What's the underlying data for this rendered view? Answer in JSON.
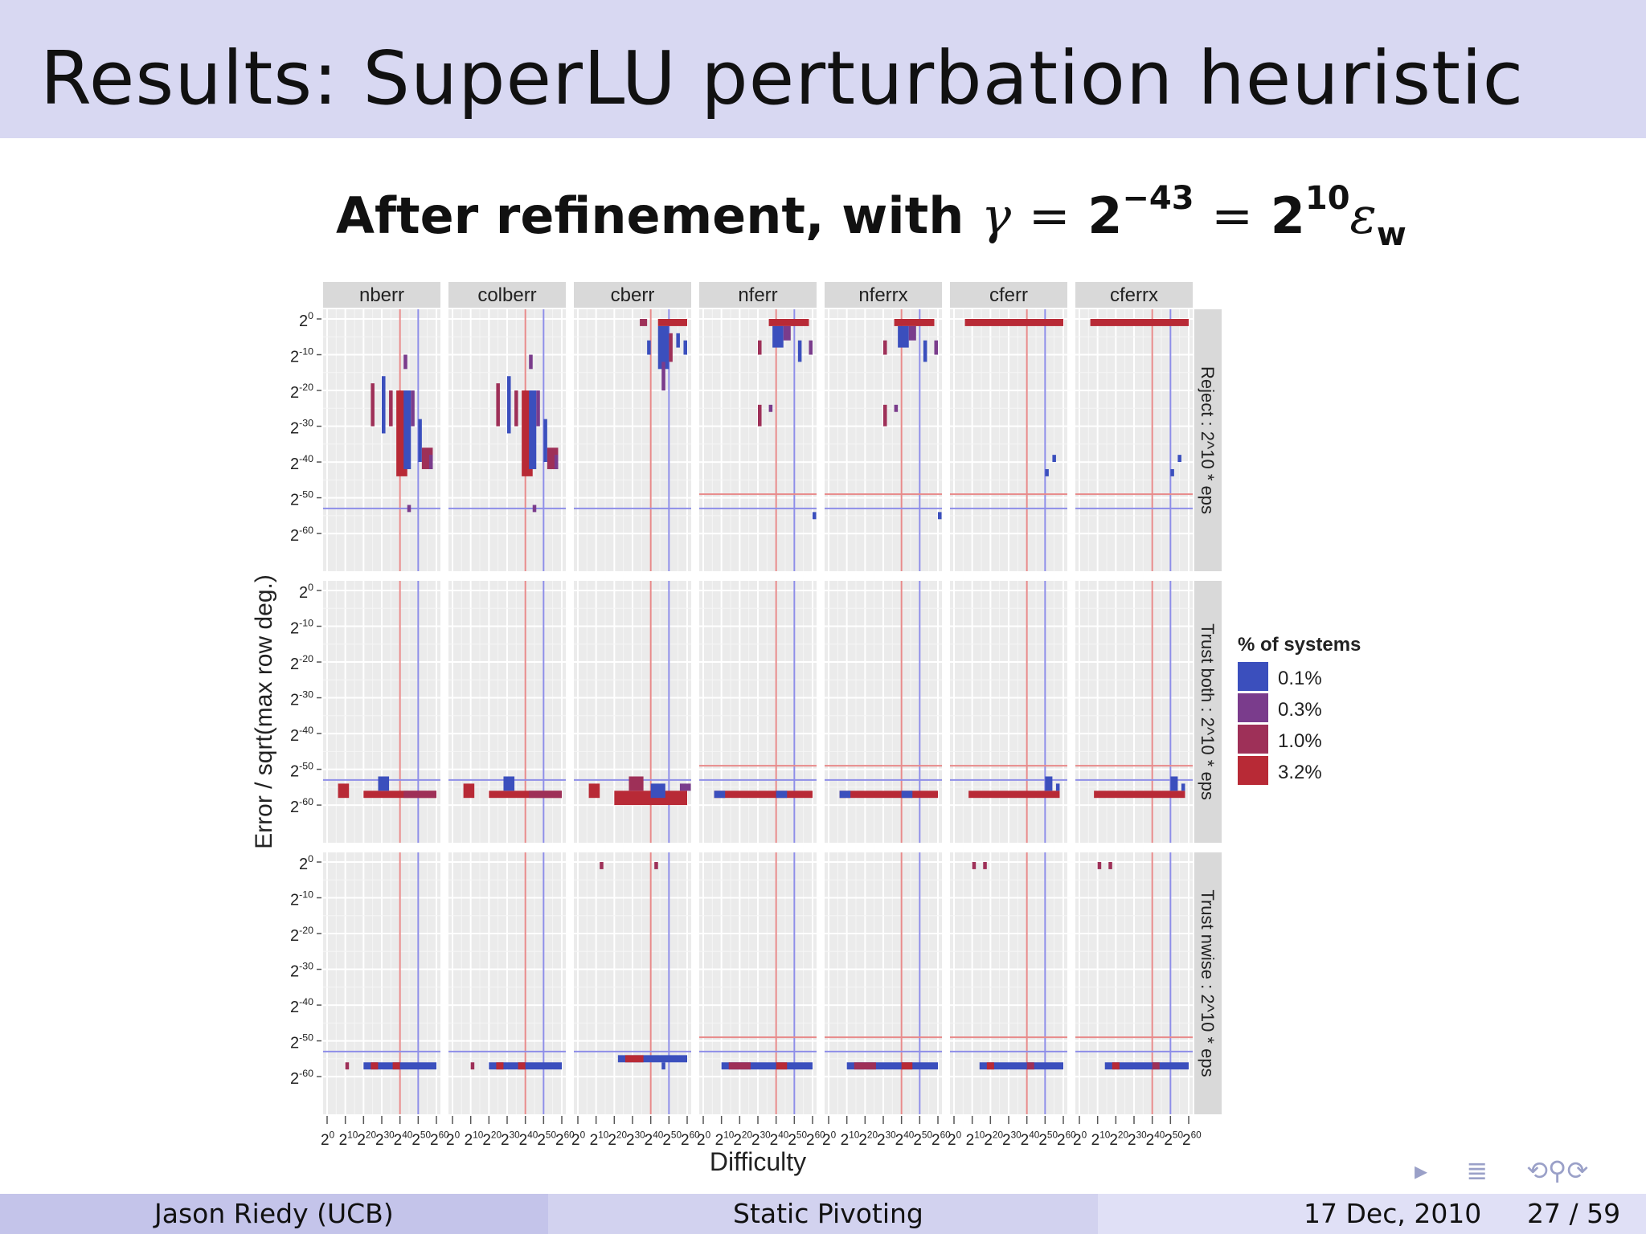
{
  "slide": {
    "title": "Results: SuperLU perturbation heuristic",
    "subtitle_text": "After refinement, with",
    "subtitle_gamma": "γ",
    "subtitle_eq": "=",
    "subtitle_base": "2",
    "subtitle_exp1": "−43",
    "subtitle_exp2": "10",
    "subtitle_eps": "ε",
    "subtitle_eps_sub": "w"
  },
  "nav_icons": [
    "nav-arrow-icon",
    "nav-menu-icon",
    "nav-search-icons"
  ],
  "nav_symbols": {
    "arrow": "▸",
    "menu": "≣",
    "search": "⟲⚲⟳"
  },
  "footer": {
    "author": "Jason Riedy  (UCB)",
    "talk_title": "Static Pivoting",
    "date": "17 Dec, 2010",
    "page": "27 / 59"
  },
  "colors": {
    "title_bar": "#d8d8f2",
    "panel_bg": "#ebebeb",
    "strip_bg": "#d9d9d9",
    "ref_red": "#e88a8a",
    "ref_blue": "#8e8ee8"
  },
  "chart_data": {
    "type": "heatmap",
    "facet_columns": [
      "nberr",
      "colberr",
      "cberr",
      "nferr",
      "nferrx",
      "cferr",
      "cferrx"
    ],
    "facet_rows": [
      "Reject : 2^10 * eps",
      "Trust both : 2^10 * eps",
      "Trust nwise : 2^10 * eps"
    ],
    "xlabel": "Difficulty",
    "ylabel": "Error / sqrt(max row deg.)",
    "x_ticks": [
      "2^0",
      "2^10",
      "2^20",
      "2^30",
      "2^40",
      "2^50",
      "2^60"
    ],
    "y_ticks": [
      "2^0",
      "2^-10",
      "2^-20",
      "2^-30",
      "2^-40",
      "2^-50",
      "2^-60"
    ],
    "x_range_log2": [
      0,
      60
    ],
    "y_range_log2": [
      -62,
      0
    ],
    "grid": true,
    "legend_position": "right",
    "legend": {
      "title": "% of systems",
      "entries": [
        {
          "label": "0.1%",
          "color": "#3b4fbd"
        },
        {
          "label": "0.3%",
          "color": "#7a3c8c"
        },
        {
          "label": "1.0%",
          "color": "#9e3058"
        },
        {
          "label": "3.2%",
          "color": "#b82a36"
        }
      ]
    },
    "reference_lines": {
      "vertical_red_x": 40,
      "vertical_blue_x": 50,
      "horizontal_blue_y": -53,
      "horizontal_red_y": -49
    },
    "cells": [
      {
        "col": 0,
        "row": 0,
        "x": 42,
        "y": -10,
        "h": 4,
        "w": 2,
        "l": 1
      },
      {
        "col": 0,
        "row": 0,
        "x": 24,
        "y": -18,
        "h": 12,
        "w": 2,
        "l": 2
      },
      {
        "col": 0,
        "row": 0,
        "x": 30,
        "y": -16,
        "h": 16,
        "w": 2,
        "l": 0
      },
      {
        "col": 0,
        "row": 0,
        "x": 34,
        "y": -20,
        "h": 10,
        "w": 2,
        "l": 2
      },
      {
        "col": 0,
        "row": 0,
        "x": 38,
        "y": -20,
        "h": 24,
        "w": 6,
        "l": 3
      },
      {
        "col": 0,
        "row": 0,
        "x": 42,
        "y": -20,
        "h": 22,
        "w": 4,
        "l": 0
      },
      {
        "col": 0,
        "row": 0,
        "x": 46,
        "y": -20,
        "h": 10,
        "w": 2,
        "l": 1
      },
      {
        "col": 0,
        "row": 0,
        "x": 50,
        "y": -28,
        "h": 12,
        "w": 2,
        "l": 0
      },
      {
        "col": 0,
        "row": 0,
        "x": 52,
        "y": -36,
        "h": 6,
        "w": 6,
        "l": 2
      },
      {
        "col": 0,
        "row": 0,
        "x": 56,
        "y": -38,
        "h": 4,
        "w": 2,
        "l": 1
      },
      {
        "col": 0,
        "row": 0,
        "x": 44,
        "y": -52,
        "h": 2,
        "w": 2,
        "l": 1
      },
      {
        "col": 1,
        "row": 0,
        "x": 42,
        "y": -10,
        "h": 4,
        "w": 2,
        "l": 1
      },
      {
        "col": 1,
        "row": 0,
        "x": 24,
        "y": -18,
        "h": 12,
        "w": 2,
        "l": 2
      },
      {
        "col": 1,
        "row": 0,
        "x": 30,
        "y": -16,
        "h": 16,
        "w": 2,
        "l": 0
      },
      {
        "col": 1,
        "row": 0,
        "x": 34,
        "y": -20,
        "h": 10,
        "w": 2,
        "l": 2
      },
      {
        "col": 1,
        "row": 0,
        "x": 38,
        "y": -20,
        "h": 24,
        "w": 6,
        "l": 3
      },
      {
        "col": 1,
        "row": 0,
        "x": 42,
        "y": -20,
        "h": 22,
        "w": 4,
        "l": 0
      },
      {
        "col": 1,
        "row": 0,
        "x": 46,
        "y": -20,
        "h": 10,
        "w": 2,
        "l": 1
      },
      {
        "col": 1,
        "row": 0,
        "x": 50,
        "y": -28,
        "h": 12,
        "w": 2,
        "l": 0
      },
      {
        "col": 1,
        "row": 0,
        "x": 52,
        "y": -36,
        "h": 6,
        "w": 6,
        "l": 2
      },
      {
        "col": 1,
        "row": 0,
        "x": 56,
        "y": -38,
        "h": 4,
        "w": 2,
        "l": 1
      },
      {
        "col": 1,
        "row": 0,
        "x": 44,
        "y": -52,
        "h": 2,
        "w": 2,
        "l": 1
      },
      {
        "col": 2,
        "row": 0,
        "x": 34,
        "y": 0,
        "h": 2,
        "w": 4,
        "l": 2
      },
      {
        "col": 2,
        "row": 0,
        "x": 44,
        "y": 0,
        "h": 2,
        "w": 16,
        "l": 3
      },
      {
        "col": 2,
        "row": 0,
        "x": 44,
        "y": -2,
        "h": 12,
        "w": 6,
        "l": 0
      },
      {
        "col": 2,
        "row": 0,
        "x": 50,
        "y": -4,
        "h": 8,
        "w": 2,
        "l": 2
      },
      {
        "col": 2,
        "row": 0,
        "x": 54,
        "y": -4,
        "h": 4,
        "w": 2,
        "l": 0
      },
      {
        "col": 2,
        "row": 0,
        "x": 46,
        "y": -12,
        "h": 8,
        "w": 2,
        "l": 1
      },
      {
        "col": 2,
        "row": 0,
        "x": 38,
        "y": -6,
        "h": 4,
        "w": 2,
        "l": 0
      },
      {
        "col": 2,
        "row": 0,
        "x": 58,
        "y": -6,
        "h": 4,
        "w": 2,
        "l": 0
      },
      {
        "col": 3,
        "row": 0,
        "x": 36,
        "y": 0,
        "h": 2,
        "w": 22,
        "l": 3
      },
      {
        "col": 3,
        "row": 0,
        "x": 38,
        "y": -2,
        "h": 6,
        "w": 6,
        "l": 0
      },
      {
        "col": 3,
        "row": 0,
        "x": 44,
        "y": -2,
        "h": 4,
        "w": 4,
        "l": 1
      },
      {
        "col": 3,
        "row": 0,
        "x": 30,
        "y": -6,
        "h": 4,
        "w": 2,
        "l": 2
      },
      {
        "col": 3,
        "row": 0,
        "x": 58,
        "y": -6,
        "h": 4,
        "w": 2,
        "l": 1
      },
      {
        "col": 3,
        "row": 0,
        "x": 52,
        "y": -6,
        "h": 6,
        "w": 2,
        "l": 0
      },
      {
        "col": 3,
        "row": 0,
        "x": 30,
        "y": -24,
        "h": 6,
        "w": 2,
        "l": 2
      },
      {
        "col": 3,
        "row": 0,
        "x": 36,
        "y": -24,
        "h": 2,
        "w": 2,
        "l": 1
      },
      {
        "col": 3,
        "row": 0,
        "x": 60,
        "y": -54,
        "h": 2,
        "w": 2,
        "l": 0
      },
      {
        "col": 4,
        "row": 0,
        "x": 36,
        "y": 0,
        "h": 2,
        "w": 22,
        "l": 3
      },
      {
        "col": 4,
        "row": 0,
        "x": 38,
        "y": -2,
        "h": 6,
        "w": 6,
        "l": 0
      },
      {
        "col": 4,
        "row": 0,
        "x": 44,
        "y": -2,
        "h": 4,
        "w": 4,
        "l": 1
      },
      {
        "col": 4,
        "row": 0,
        "x": 30,
        "y": -6,
        "h": 4,
        "w": 2,
        "l": 2
      },
      {
        "col": 4,
        "row": 0,
        "x": 58,
        "y": -6,
        "h": 4,
        "w": 2,
        "l": 1
      },
      {
        "col": 4,
        "row": 0,
        "x": 52,
        "y": -6,
        "h": 6,
        "w": 2,
        "l": 0
      },
      {
        "col": 4,
        "row": 0,
        "x": 30,
        "y": -24,
        "h": 6,
        "w": 2,
        "l": 2
      },
      {
        "col": 4,
        "row": 0,
        "x": 36,
        "y": -24,
        "h": 2,
        "w": 2,
        "l": 1
      },
      {
        "col": 4,
        "row": 0,
        "x": 60,
        "y": -54,
        "h": 2,
        "w": 2,
        "l": 0
      },
      {
        "col": 5,
        "row": 0,
        "x": 6,
        "y": 0,
        "h": 2,
        "w": 54,
        "l": 3
      },
      {
        "col": 5,
        "row": 0,
        "x": 54,
        "y": -38,
        "h": 2,
        "w": 2,
        "l": 0
      },
      {
        "col": 5,
        "row": 0,
        "x": 50,
        "y": -42,
        "h": 2,
        "w": 2,
        "l": 0
      },
      {
        "col": 6,
        "row": 0,
        "x": 6,
        "y": 0,
        "h": 2,
        "w": 54,
        "l": 3
      },
      {
        "col": 6,
        "row": 0,
        "x": 54,
        "y": -38,
        "h": 2,
        "w": 2,
        "l": 0
      },
      {
        "col": 6,
        "row": 0,
        "x": 50,
        "y": -42,
        "h": 2,
        "w": 2,
        "l": 0
      },
      {
        "col": 0,
        "row": 1,
        "x": 6,
        "y": -54,
        "h": 4,
        "w": 6,
        "l": 3
      },
      {
        "col": 0,
        "row": 1,
        "x": 20,
        "y": -56,
        "h": 2,
        "w": 40,
        "l": 3
      },
      {
        "col": 0,
        "row": 1,
        "x": 28,
        "y": -52,
        "h": 4,
        "w": 6,
        "l": 0
      },
      {
        "col": 0,
        "row": 1,
        "x": 42,
        "y": -56,
        "h": 2,
        "w": 18,
        "l": 2
      },
      {
        "col": 1,
        "row": 1,
        "x": 6,
        "y": -54,
        "h": 4,
        "w": 6,
        "l": 3
      },
      {
        "col": 1,
        "row": 1,
        "x": 20,
        "y": -56,
        "h": 2,
        "w": 40,
        "l": 3
      },
      {
        "col": 1,
        "row": 1,
        "x": 28,
        "y": -52,
        "h": 4,
        "w": 6,
        "l": 0
      },
      {
        "col": 1,
        "row": 1,
        "x": 42,
        "y": -56,
        "h": 2,
        "w": 18,
        "l": 2
      },
      {
        "col": 2,
        "row": 1,
        "x": 6,
        "y": -54,
        "h": 4,
        "w": 6,
        "l": 3
      },
      {
        "col": 2,
        "row": 1,
        "x": 20,
        "y": -56,
        "h": 4,
        "w": 40,
        "l": 3
      },
      {
        "col": 2,
        "row": 1,
        "x": 28,
        "y": -52,
        "h": 4,
        "w": 8,
        "l": 2
      },
      {
        "col": 2,
        "row": 1,
        "x": 40,
        "y": -54,
        "h": 4,
        "w": 8,
        "l": 0
      },
      {
        "col": 2,
        "row": 1,
        "x": 56,
        "y": -54,
        "h": 2,
        "w": 6,
        "l": 1
      },
      {
        "col": 3,
        "row": 1,
        "x": 6,
        "y": -56,
        "h": 2,
        "w": 54,
        "l": 3
      },
      {
        "col": 3,
        "row": 1,
        "x": 6,
        "y": -56,
        "h": 2,
        "w": 6,
        "l": 0
      },
      {
        "col": 3,
        "row": 1,
        "x": 40,
        "y": -56,
        "h": 2,
        "w": 6,
        "l": 0
      },
      {
        "col": 4,
        "row": 1,
        "x": 6,
        "y": -56,
        "h": 2,
        "w": 54,
        "l": 3
      },
      {
        "col": 4,
        "row": 1,
        "x": 6,
        "y": -56,
        "h": 2,
        "w": 6,
        "l": 0
      },
      {
        "col": 4,
        "row": 1,
        "x": 40,
        "y": -56,
        "h": 2,
        "w": 6,
        "l": 0
      },
      {
        "col": 5,
        "row": 1,
        "x": 8,
        "y": -56,
        "h": 2,
        "w": 50,
        "l": 3
      },
      {
        "col": 5,
        "row": 1,
        "x": 50,
        "y": -52,
        "h": 4,
        "w": 4,
        "l": 0
      },
      {
        "col": 5,
        "row": 1,
        "x": 56,
        "y": -54,
        "h": 2,
        "w": 2,
        "l": 0
      },
      {
        "col": 6,
        "row": 1,
        "x": 8,
        "y": -56,
        "h": 2,
        "w": 50,
        "l": 3
      },
      {
        "col": 6,
        "row": 1,
        "x": 50,
        "y": -52,
        "h": 4,
        "w": 4,
        "l": 0
      },
      {
        "col": 6,
        "row": 1,
        "x": 56,
        "y": -54,
        "h": 2,
        "w": 2,
        "l": 0
      },
      {
        "col": 0,
        "row": 2,
        "x": 10,
        "y": -56,
        "h": 2,
        "w": 2,
        "l": 2
      },
      {
        "col": 0,
        "row": 2,
        "x": 20,
        "y": -56,
        "h": 2,
        "w": 40,
        "l": 0
      },
      {
        "col": 0,
        "row": 2,
        "x": 24,
        "y": -56,
        "h": 2,
        "w": 4,
        "l": 3
      },
      {
        "col": 0,
        "row": 2,
        "x": 36,
        "y": -56,
        "h": 2,
        "w": 4,
        "l": 3
      },
      {
        "col": 1,
        "row": 2,
        "x": 10,
        "y": -56,
        "h": 2,
        "w": 2,
        "l": 2
      },
      {
        "col": 1,
        "row": 2,
        "x": 20,
        "y": -56,
        "h": 2,
        "w": 40,
        "l": 0
      },
      {
        "col": 1,
        "row": 2,
        "x": 24,
        "y": -56,
        "h": 2,
        "w": 4,
        "l": 3
      },
      {
        "col": 1,
        "row": 2,
        "x": 36,
        "y": -56,
        "h": 2,
        "w": 4,
        "l": 3
      },
      {
        "col": 2,
        "row": 2,
        "x": 22,
        "y": -54,
        "h": 2,
        "w": 38,
        "l": 0
      },
      {
        "col": 2,
        "row": 2,
        "x": 26,
        "y": -54,
        "h": 2,
        "w": 10,
        "l": 3
      },
      {
        "col": 2,
        "row": 2,
        "x": 46,
        "y": -56,
        "h": 2,
        "w": 2,
        "l": 0
      },
      {
        "col": 2,
        "row": 2,
        "x": 12,
        "y": 0,
        "h": 2,
        "w": 2,
        "l": 2
      },
      {
        "col": 2,
        "row": 2,
        "x": 42,
        "y": 0,
        "h": 2,
        "w": 2,
        "l": 2
      },
      {
        "col": 3,
        "row": 2,
        "x": 10,
        "y": -56,
        "h": 2,
        "w": 50,
        "l": 0
      },
      {
        "col": 3,
        "row": 2,
        "x": 14,
        "y": -56,
        "h": 2,
        "w": 12,
        "l": 2
      },
      {
        "col": 3,
        "row": 2,
        "x": 40,
        "y": -56,
        "h": 2,
        "w": 6,
        "l": 3
      },
      {
        "col": 4,
        "row": 2,
        "x": 10,
        "y": -56,
        "h": 2,
        "w": 50,
        "l": 0
      },
      {
        "col": 4,
        "row": 2,
        "x": 14,
        "y": -56,
        "h": 2,
        "w": 12,
        "l": 2
      },
      {
        "col": 4,
        "row": 2,
        "x": 40,
        "y": -56,
        "h": 2,
        "w": 6,
        "l": 3
      },
      {
        "col": 5,
        "row": 2,
        "x": 14,
        "y": -56,
        "h": 2,
        "w": 46,
        "l": 0
      },
      {
        "col": 5,
        "row": 2,
        "x": 18,
        "y": -56,
        "h": 2,
        "w": 4,
        "l": 3
      },
      {
        "col": 5,
        "row": 2,
        "x": 40,
        "y": -56,
        "h": 2,
        "w": 4,
        "l": 2
      },
      {
        "col": 5,
        "row": 2,
        "x": 10,
        "y": 0,
        "h": 2,
        "w": 2,
        "l": 2
      },
      {
        "col": 5,
        "row": 2,
        "x": 16,
        "y": 0,
        "h": 2,
        "w": 2,
        "l": 2
      },
      {
        "col": 6,
        "row": 2,
        "x": 14,
        "y": -56,
        "h": 2,
        "w": 46,
        "l": 0
      },
      {
        "col": 6,
        "row": 2,
        "x": 18,
        "y": -56,
        "h": 2,
        "w": 4,
        "l": 3
      },
      {
        "col": 6,
        "row": 2,
        "x": 40,
        "y": -56,
        "h": 2,
        "w": 4,
        "l": 2
      },
      {
        "col": 6,
        "row": 2,
        "x": 10,
        "y": 0,
        "h": 2,
        "w": 2,
        "l": 2
      },
      {
        "col": 6,
        "row": 2,
        "x": 16,
        "y": 0,
        "h": 2,
        "w": 2,
        "l": 2
      }
    ]
  }
}
